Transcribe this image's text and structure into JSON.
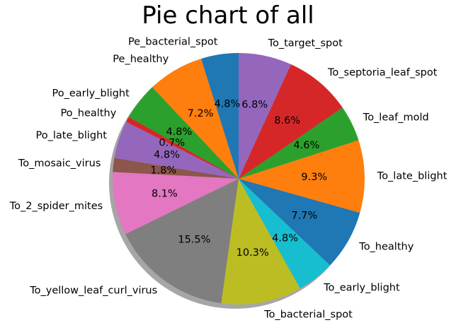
{
  "chart_data": {
    "type": "pie",
    "title": "Pie chart of all",
    "shadow": true,
    "start_angle": "90",
    "direction": "counterclockwise",
    "slices": [
      {
        "label": "Pe_bacterial_spot",
        "pct": "4.8%",
        "value": 4.8,
        "color": "#1f77b4"
      },
      {
        "label": "Pe_healthy",
        "pct": "7.2%",
        "value": 7.2,
        "color": "#ff7f0e"
      },
      {
        "label": "Po_early_blight",
        "pct": "4.8%",
        "value": 4.8,
        "color": "#2ca02c"
      },
      {
        "label": "Po_healthy",
        "pct": "0.7%",
        "value": 0.7,
        "color": "#d62728"
      },
      {
        "label": "Po_late_blight",
        "pct": "4.8%",
        "value": 4.8,
        "color": "#9467bd"
      },
      {
        "label": "To_mosaic_virus",
        "pct": "1.8%",
        "value": 1.8,
        "color": "#8c564b"
      },
      {
        "label": "To_2_spider_mites",
        "pct": "8.1%",
        "value": 8.1,
        "color": "#e377c2"
      },
      {
        "label": "To_yellow_leaf_curl_virus",
        "pct": "15.5%",
        "value": 15.5,
        "color": "#7f7f7f"
      },
      {
        "label": "To_bacterial_spot",
        "pct": "10.3%",
        "value": 10.3,
        "color": "#bcbd22"
      },
      {
        "label": "To_early_blight",
        "pct": "4.8%",
        "value": 4.8,
        "color": "#17becf"
      },
      {
        "label": "To_healthy",
        "pct": "7.7%",
        "value": 7.7,
        "color": "#1f77b4"
      },
      {
        "label": "To_late_blight",
        "pct": "9.3%",
        "value": 9.3,
        "color": "#ff7f0e"
      },
      {
        "label": "To_leaf_mold",
        "pct": "4.6%",
        "value": 4.6,
        "color": "#2ca02c"
      },
      {
        "label": "To_septoria_leaf_spot",
        "pct": "8.6%",
        "value": 8.6,
        "color": "#d62728"
      },
      {
        "label": "To_target_spot",
        "pct": "6.8%",
        "value": 6.8,
        "color": "#9467bd"
      }
    ]
  }
}
